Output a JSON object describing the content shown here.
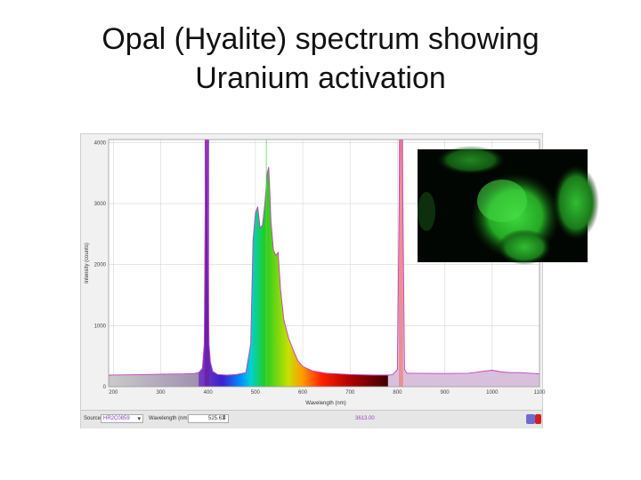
{
  "slide": {
    "title_line1": "Opal (Hyalite) spectrum showing",
    "title_line2": "Uranium activation"
  },
  "colors": {
    "background": "#f1f1f1",
    "grid": "#d6d6d6",
    "baseline_fill": "#d8c0dc",
    "outline": "#c040c0",
    "laser_line": "#6a1fa8",
    "reference_line": "#f08a8a",
    "fluorescence": "#3bd23b"
  },
  "chart_data": {
    "type": "area",
    "title": "",
    "xlabel": "Wavelength (nm)",
    "ylabel": "Intensity (counts)",
    "xlim": [
      190,
      1100
    ],
    "ylim": [
      0,
      4050
    ],
    "x_ticks": [
      200,
      300,
      400,
      500,
      600,
      700,
      800,
      900,
      1000,
      1100
    ],
    "y_ticks": [
      0,
      1000,
      2000,
      3000,
      4000
    ],
    "grid": true,
    "fill": "visible-spectrum gradient under curve",
    "series": [
      {
        "x": [
          190,
          250,
          300,
          350,
          370,
          380,
          388,
          392,
          395,
          398,
          402,
          405,
          410,
          420,
          440,
          460,
          480,
          490,
          495,
          500,
          505,
          510,
          515,
          520,
          525,
          528,
          530,
          533,
          538,
          543,
          548,
          553,
          560,
          570,
          580,
          590,
          600,
          620,
          650,
          700,
          750,
          780,
          790,
          800,
          805,
          810,
          815,
          820,
          840,
          900,
          950,
          980,
          1000,
          1020,
          1040,
          1060,
          1080,
          1100
        ],
        "y": [
          190,
          195,
          205,
          210,
          215,
          230,
          300,
          700,
          4050,
          4050,
          700,
          400,
          250,
          200,
          190,
          200,
          230,
          700,
          2400,
          2850,
          2950,
          2600,
          2650,
          3000,
          3500,
          3600,
          3300,
          2700,
          2250,
          2150,
          2200,
          1600,
          1100,
          800,
          600,
          420,
          330,
          260,
          220,
          200,
          190,
          190,
          195,
          280,
          4050,
          4050,
          280,
          220,
          220,
          215,
          220,
          250,
          270,
          240,
          230,
          230,
          220,
          210
        ]
      }
    ],
    "reference_markers": [
      {
        "x": 523,
        "color": "#5ad75a"
      }
    ]
  },
  "status_bar": {
    "source_label": "Source:",
    "source_value": "HR2C0859",
    "wavelength_label": "Wavelength (nm):",
    "wavelength_value": "525.63",
    "intensity_value": "3613.00"
  },
  "photo": {
    "description_icon": "green-fluorescence-photo"
  }
}
